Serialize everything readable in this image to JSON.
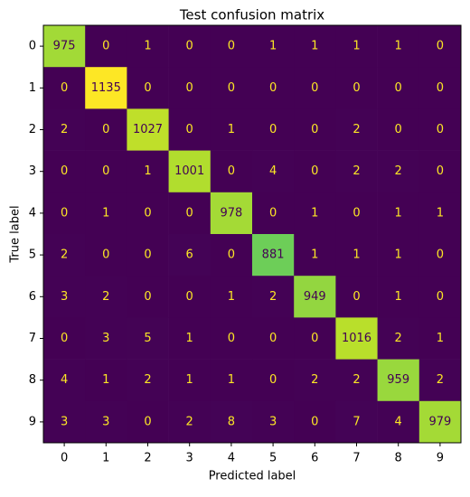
{
  "chart_data": {
    "type": "heatmap",
    "title": "Test confusion matrix",
    "x_label": "Predicted label",
    "y_label": "True label",
    "x_categories": [
      "0",
      "1",
      "2",
      "3",
      "4",
      "5",
      "6",
      "7",
      "8",
      "9"
    ],
    "y_categories": [
      "0",
      "1",
      "2",
      "3",
      "4",
      "5",
      "6",
      "7",
      "8",
      "9"
    ],
    "colormap": "viridis",
    "values": [
      [
        975,
        0,
        1,
        0,
        0,
        1,
        1,
        1,
        1,
        0
      ],
      [
        0,
        1135,
        0,
        0,
        0,
        0,
        0,
        0,
        0,
        0
      ],
      [
        2,
        0,
        1027,
        0,
        1,
        0,
        0,
        2,
        0,
        0
      ],
      [
        0,
        0,
        1,
        1001,
        0,
        4,
        0,
        2,
        2,
        0
      ],
      [
        0,
        1,
        0,
        0,
        978,
        0,
        1,
        0,
        1,
        1
      ],
      [
        2,
        0,
        0,
        6,
        0,
        881,
        1,
        1,
        1,
        0
      ],
      [
        3,
        2,
        0,
        0,
        1,
        2,
        949,
        0,
        1,
        0
      ],
      [
        0,
        3,
        5,
        1,
        0,
        0,
        0,
        1016,
        2,
        1
      ],
      [
        4,
        1,
        2,
        1,
        1,
        0,
        2,
        2,
        959,
        2
      ],
      [
        3,
        3,
        0,
        2,
        8,
        3,
        0,
        7,
        4,
        979
      ]
    ]
  }
}
